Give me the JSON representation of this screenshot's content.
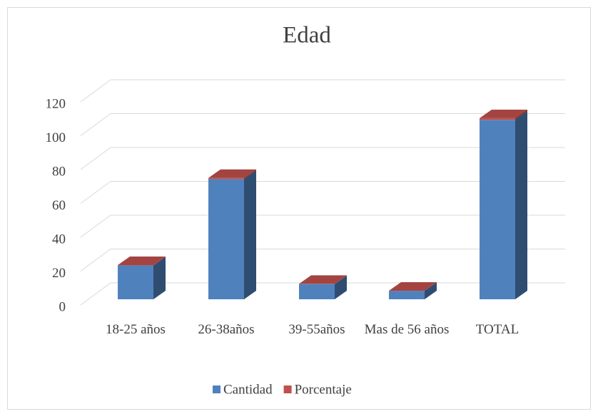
{
  "chart_data": {
    "type": "bar3d_stacked",
    "title": "Edad",
    "categories": [
      "18-25 años",
      "26-38años",
      "39-55años",
      "Mas de 56 años",
      "TOTAL"
    ],
    "series": [
      {
        "name": "Cantidad",
        "color": "#4f81bd",
        "values": [
          20,
          71,
          9,
          5,
          106
        ]
      },
      {
        "name": "Porcentaje",
        "color": "#c0504d",
        "values": [
          0.19,
          0.67,
          0.09,
          0.05,
          1
        ]
      }
    ],
    "ylim": [
      0,
      120
    ],
    "yticks": [
      0,
      20,
      40,
      60,
      80,
      100,
      120
    ],
    "grid": true,
    "legend": "bottom"
  }
}
